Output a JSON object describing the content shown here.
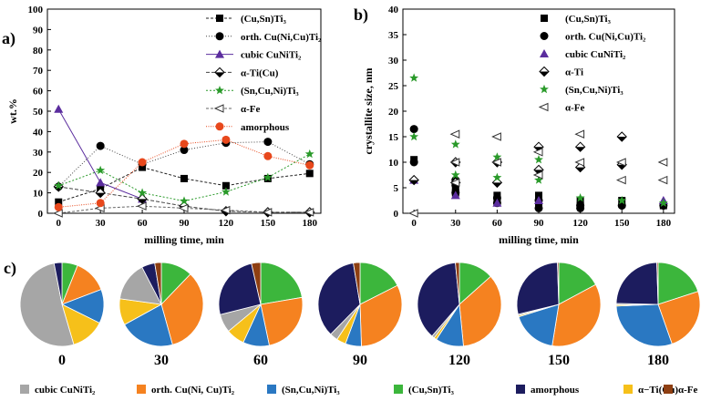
{
  "panel_labels": {
    "a": "a)",
    "b": "b)",
    "c": "c)"
  },
  "colors": {
    "cubic": "#a6a6a6",
    "orth": "#f58220",
    "sncuni": "#2a78c2",
    "cusn": "#3cb63c",
    "amorph": "#1c1c5e",
    "alphati": "#f6c01a",
    "alphafe": "#8e3f12",
    "red_line": "#e8481c",
    "purple": "#5b2d9e",
    "green_star": "#2a9a2a"
  },
  "chart_data": [
    {
      "id": "a",
      "type": "line",
      "xlabel": "milling time, min",
      "ylabel": "wt.%",
      "x": [
        0,
        30,
        60,
        90,
        120,
        150,
        180
      ],
      "xlim": [
        -8,
        188
      ],
      "ylim": [
        0,
        100
      ],
      "xticks": [
        "0",
        "30",
        "60",
        "90",
        "120",
        "150",
        "180"
      ],
      "yticks": [
        "0",
        "10",
        "20",
        "30",
        "40",
        "50",
        "60",
        "70",
        "80",
        "90",
        "100"
      ],
      "series": [
        {
          "name": "(Cu,Sn)Ti3",
          "marker": "square",
          "values": [
            5.5,
            12,
            22.5,
            17,
            13.5,
            17,
            19.5
          ]
        },
        {
          "name": "orth. Cu(Ni,Cu)Ti2",
          "marker": "circle",
          "values": [
            13,
            33,
            24,
            31,
            34.5,
            35,
            24
          ]
        },
        {
          "name": "cubic CuNiTi2",
          "marker": "triangle",
          "values": [
            51,
            15,
            7,
            null,
            null,
            null,
            null
          ]
        },
        {
          "name": "α-Ti(Cu)",
          "marker": "diamond",
          "values": [
            13,
            10,
            7,
            3.5,
            1,
            0.5,
            0.5
          ]
        },
        {
          "name": "(Sn,Cu,Ni)Ti3",
          "marker": "star",
          "values": [
            13.5,
            21,
            10,
            6,
            10.5,
            17.5,
            29
          ]
        },
        {
          "name": "α-Fe",
          "marker": "tri-left",
          "values": [
            0,
            2.5,
            3.5,
            2.5,
            1.5,
            0.5,
            0.5
          ]
        },
        {
          "name": "amorphous",
          "marker": "circle-red",
          "values": [
            3,
            5,
            25,
            34,
            36,
            28,
            23.5
          ]
        }
      ],
      "legend": {
        "position": "top-right",
        "items": [
          {
            "label": "(Cu,Sn)Ti₃",
            "marker": "square"
          },
          {
            "label": "orth. Cu(Ni,Cu)Ti₂",
            "marker": "circle"
          },
          {
            "label": "cubic CuNiTi₂",
            "marker": "triangle"
          },
          {
            "label": "α-Ti(Cu)",
            "marker": "diamond"
          },
          {
            "label": "(Sn,Cu,Ni)Ti₃",
            "marker": "star"
          },
          {
            "label": "α-Fe",
            "marker": "tri-left"
          },
          {
            "label": "amorphous",
            "marker": "circle-red"
          }
        ]
      }
    },
    {
      "id": "b",
      "type": "scatter",
      "xlabel": "milling time, min",
      "ylabel": "crystallite size, nm",
      "xlim": [
        -8,
        188
      ],
      "ylim": [
        0,
        40
      ],
      "xticks": [
        "0",
        "30",
        "60",
        "90",
        "120",
        "150",
        "180"
      ],
      "yticks": [
        "0",
        "5",
        "10",
        "15",
        "20",
        "25",
        "30",
        "35",
        "40"
      ],
      "series": [
        {
          "name": "(Cu,Sn)Ti3",
          "marker": "square",
          "points": [
            [
              0,
              10.5
            ],
            [
              30,
              6
            ],
            [
              30,
              5
            ],
            [
              30,
              4
            ],
            [
              60,
              3.5
            ],
            [
              60,
              2.5
            ],
            [
              90,
              3.5
            ],
            [
              90,
              2
            ],
            [
              120,
              2.5
            ],
            [
              120,
              1.5
            ],
            [
              150,
              2.5
            ],
            [
              180,
              1.5
            ]
          ]
        },
        {
          "name": "orth. Cu(Ni,Cu)Ti2",
          "marker": "circle",
          "points": [
            [
              0,
              16.5
            ],
            [
              0,
              10
            ],
            [
              30,
              6.5
            ],
            [
              30,
              5.5
            ],
            [
              30,
              4
            ],
            [
              60,
              3
            ],
            [
              60,
              2
            ],
            [
              90,
              2.5
            ],
            [
              90,
              1
            ],
            [
              120,
              1.5
            ],
            [
              120,
              1
            ],
            [
              150,
              1.5
            ],
            [
              180,
              1.5
            ]
          ]
        },
        {
          "name": "cubic CuNiTi2",
          "marker": "triangle",
          "points": [
            [
              0,
              6.5
            ],
            [
              30,
              3.5
            ],
            [
              60,
              2
            ],
            [
              90,
              2.5
            ],
            [
              180,
              2.5
            ]
          ]
        },
        {
          "name": "α-Ti",
          "marker": "diamond",
          "points": [
            [
              0,
              6.5
            ],
            [
              30,
              10
            ],
            [
              30,
              6
            ],
            [
              60,
              10
            ],
            [
              60,
              6
            ],
            [
              90,
              13
            ],
            [
              90,
              8.5
            ],
            [
              120,
              13
            ],
            [
              120,
              9
            ],
            [
              150,
              15
            ],
            [
              150,
              9.5
            ]
          ]
        },
        {
          "name": "(Sn,Cu,Ni)Ti3",
          "marker": "star",
          "points": [
            [
              0,
              26.5
            ],
            [
              0,
              15
            ],
            [
              30,
              13.5
            ],
            [
              30,
              7.5
            ],
            [
              60,
              11
            ],
            [
              60,
              7
            ],
            [
              90,
              10.5
            ],
            [
              90,
              6.5
            ],
            [
              120,
              3
            ],
            [
              150,
              2.5
            ],
            [
              180,
              2
            ]
          ]
        },
        {
          "name": "α-Fe",
          "marker": "tri-left",
          "points": [
            [
              0,
              0
            ],
            [
              30,
              15.5
            ],
            [
              30,
              10
            ],
            [
              30,
              6
            ],
            [
              60,
              15
            ],
            [
              60,
              10
            ],
            [
              90,
              12
            ],
            [
              90,
              7.5
            ],
            [
              120,
              15.5
            ],
            [
              120,
              10
            ],
            [
              150,
              10
            ],
            [
              150,
              6.5
            ],
            [
              180,
              10
            ],
            [
              180,
              6.5
            ]
          ]
        }
      ],
      "legend": {
        "position": "top-right",
        "items": [
          {
            "label": "(Cu,Sn)Ti₃",
            "marker": "square"
          },
          {
            "label": "orth. Cu(Ni,Cu)Ti₂",
            "marker": "circle"
          },
          {
            "label": "cubic CuNiTi₂",
            "marker": "triangle"
          },
          {
            "label": "α-Ti",
            "marker": "diamond"
          },
          {
            "label": "(Sn,Cu,Ni)Ti₃",
            "marker": "star"
          },
          {
            "label": "α-Fe",
            "marker": "tri-left"
          }
        ]
      }
    },
    {
      "id": "c",
      "type": "pie",
      "order": [
        "cusn",
        "orth",
        "sncuni",
        "alphati",
        "cubic",
        "amorph",
        "alphafe"
      ],
      "pies": [
        {
          "label": "0",
          "values": {
            "cusn": 6,
            "orth": 13,
            "sncuni": 13,
            "alphati": 13,
            "cubic": 51,
            "amorph": 3,
            "alphafe": 0
          }
        },
        {
          "label": "30",
          "values": {
            "cusn": 12,
            "orth": 33,
            "sncuni": 21,
            "alphati": 10,
            "cubic": 15,
            "amorph": 5,
            "alphafe": 2.5
          }
        },
        {
          "label": "60",
          "values": {
            "cusn": 22,
            "orth": 24,
            "sncuni": 10,
            "alphati": 7,
            "cubic": 7,
            "amorph": 25,
            "alphafe": 3.5
          }
        },
        {
          "label": "90",
          "values": {
            "cusn": 17,
            "orth": 31,
            "sncuni": 6,
            "alphati": 3.5,
            "cubic": 3,
            "amorph": 34,
            "alphafe": 2.5
          }
        },
        {
          "label": "120",
          "values": {
            "cusn": 13,
            "orth": 34,
            "sncuni": 10.5,
            "alphati": 1,
            "cubic": 1,
            "amorph": 36,
            "alphafe": 1.5
          }
        },
        {
          "label": "150",
          "values": {
            "cusn": 17,
            "orth": 35,
            "sncuni": 17.5,
            "alphati": 0.5,
            "cubic": 0.5,
            "amorph": 28,
            "alphafe": 0.5
          }
        },
        {
          "label": "180",
          "values": {
            "cusn": 19.5,
            "orth": 24,
            "sncuni": 29,
            "alphati": 0.5,
            "cubic": 0.5,
            "amorph": 23.5,
            "alphafe": 0.5
          }
        }
      ],
      "legend": {
        "position": "bottom",
        "items": [
          {
            "key": "cubic",
            "label": "cubic CuNiTi₂"
          },
          {
            "key": "orth",
            "label": "orth. Cu(Ni, Cu)Ti₂"
          },
          {
            "key": "sncuni",
            "label": "(Sn,Cu,Ni)Ti₃"
          },
          {
            "key": "cusn",
            "label": "(Cu,Sn)Ti₃"
          },
          {
            "key": "amorph",
            "label": "amorphous"
          },
          {
            "key": "alphati",
            "label": "α−Ti(Cu)"
          },
          {
            "key": "alphafe",
            "label": "α-Fe"
          }
        ]
      }
    }
  ]
}
